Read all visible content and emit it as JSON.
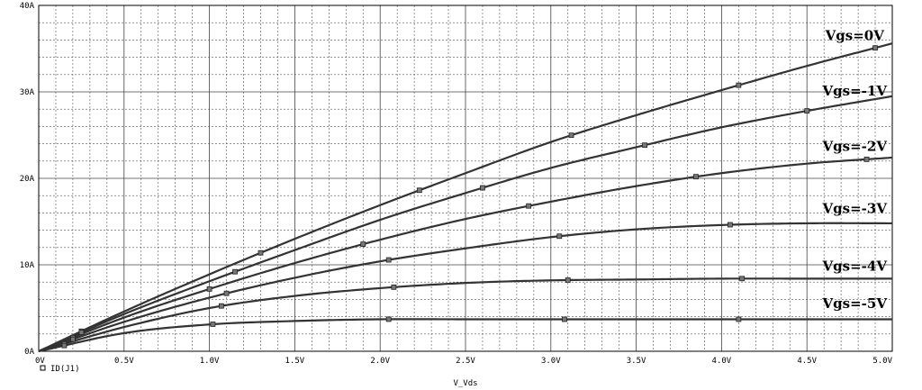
{
  "chart_data": {
    "type": "line",
    "xlabel": "V_Vds",
    "ylabel": "",
    "xlim": [
      0,
      5.0
    ],
    "ylim": [
      0,
      40
    ],
    "x_ticks": [
      {
        "v": 0,
        "label": "0V"
      },
      {
        "v": 0.5,
        "label": "0.5V"
      },
      {
        "v": 1.0,
        "label": "1.0V"
      },
      {
        "v": 1.5,
        "label": "1.5V"
      },
      {
        "v": 2.0,
        "label": "2.0V"
      },
      {
        "v": 2.5,
        "label": "2.5V"
      },
      {
        "v": 3.0,
        "label": "3.0V"
      },
      {
        "v": 3.5,
        "label": "3.5V"
      },
      {
        "v": 4.0,
        "label": "4.0V"
      },
      {
        "v": 4.5,
        "label": "4.5V"
      },
      {
        "v": 5.0,
        "label": "5.0V"
      }
    ],
    "y_ticks": [
      {
        "v": 0,
        "label": "0A"
      },
      {
        "v": 10,
        "label": "10A"
      },
      {
        "v": 20,
        "label": "20A"
      },
      {
        "v": 30,
        "label": "30A"
      },
      {
        "v": 40,
        "label": "40A"
      }
    ],
    "grid": true,
    "legend": {
      "label": "ID(J1)",
      "position": "bottom-left"
    },
    "series": [
      {
        "name": "Vgs=0V",
        "x": [
          0,
          0.5,
          1.0,
          1.5,
          2.0,
          2.5,
          3.0,
          3.5,
          4.0,
          4.5,
          5.0
        ],
        "y": [
          0,
          4.6,
          8.9,
          13.0,
          16.9,
          20.6,
          24.2,
          27.3,
          30.2,
          33.0,
          35.6
        ]
      },
      {
        "name": "Vgs=-1V",
        "x": [
          0,
          0.5,
          1.0,
          1.5,
          2.0,
          2.5,
          3.0,
          3.5,
          4.0,
          4.5,
          5.0
        ],
        "y": [
          0,
          4.3,
          8.1,
          11.7,
          15.2,
          18.3,
          21.2,
          23.6,
          25.9,
          27.8,
          29.5
        ]
      },
      {
        "name": "Vgs=-2V",
        "x": [
          0,
          0.5,
          1.0,
          1.5,
          2.0,
          2.5,
          3.0,
          3.5,
          4.0,
          4.5,
          5.0
        ],
        "y": [
          0,
          3.9,
          7.2,
          10.2,
          12.9,
          15.3,
          17.3,
          19.1,
          20.6,
          21.7,
          22.4
        ]
      },
      {
        "name": "Vgs=-3V",
        "x": [
          0,
          0.5,
          1.0,
          1.5,
          2.0,
          2.5,
          3.0,
          3.5,
          4.0,
          4.5,
          5.0
        ],
        "y": [
          0,
          3.4,
          6.2,
          8.5,
          10.4,
          11.9,
          13.2,
          14.1,
          14.6,
          14.8,
          14.8
        ]
      },
      {
        "name": "Vgs=-4V",
        "x": [
          0,
          0.5,
          1.0,
          1.5,
          2.0,
          2.5,
          3.0,
          3.5,
          4.0,
          4.5,
          5.0
        ],
        "y": [
          0,
          2.8,
          5.0,
          6.4,
          7.3,
          7.9,
          8.2,
          8.3,
          8.4,
          8.4,
          8.4
        ]
      },
      {
        "name": "Vgs=-5V",
        "x": [
          0,
          0.5,
          1.0,
          1.5,
          2.0,
          2.5,
          3.0,
          3.5,
          4.0,
          4.5,
          5.0
        ],
        "y": [
          0,
          2.1,
          3.1,
          3.5,
          3.7,
          3.7,
          3.7,
          3.7,
          3.7,
          3.7,
          3.7
        ]
      }
    ],
    "curve_labels": [
      {
        "text": "Vgs=0V",
        "at_x": 4.78,
        "at_y": 36.0
      },
      {
        "text": "Vgs=-1V",
        "at_x": 4.78,
        "at_y": 29.6
      },
      {
        "text": "Vgs=-2V",
        "at_x": 4.78,
        "at_y": 23.2
      },
      {
        "text": "Vgs=-3V",
        "at_x": 4.78,
        "at_y": 16.0
      },
      {
        "text": "Vgs=-4V",
        "at_x": 4.78,
        "at_y": 9.3
      },
      {
        "text": "Vgs=-5V",
        "at_x": 4.78,
        "at_y": 5.0
      }
    ],
    "marker_x": [
      [
        0.25,
        1.3,
        2.23,
        3.12,
        4.1,
        4.9
      ],
      [
        0.25,
        1.15,
        2.6,
        3.55,
        4.5
      ],
      [
        0.2,
        1.0,
        1.9,
        2.87,
        3.85,
        4.85
      ],
      [
        0.2,
        1.1,
        2.05,
        3.05,
        4.05
      ],
      [
        0.15,
        1.07,
        2.08,
        3.1,
        4.12
      ],
      [
        0.15,
        1.02,
        2.05,
        3.08,
        4.1
      ]
    ]
  }
}
